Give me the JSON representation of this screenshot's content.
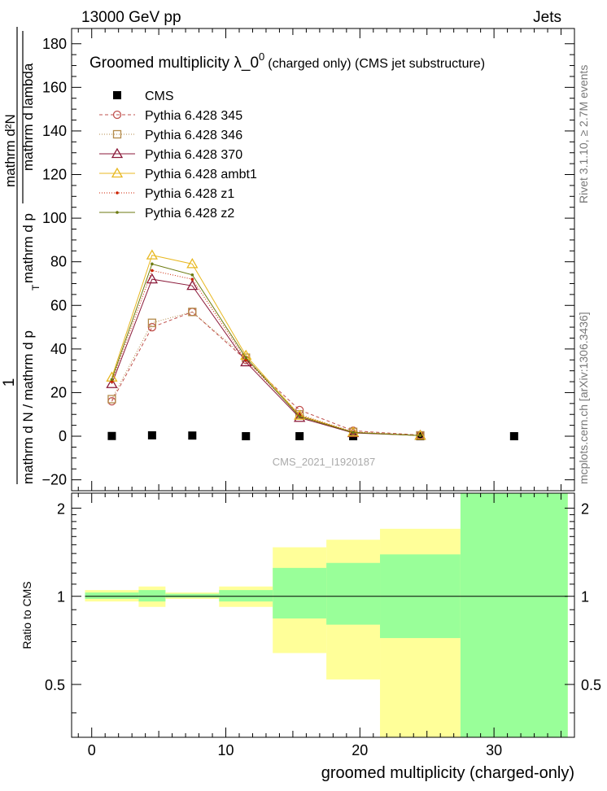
{
  "header": {
    "left": "13000 GeV pp",
    "right": "Jets"
  },
  "side_labels": {
    "rivet": "Rivet 3.1.10, ≥ 2.7M events",
    "mcplots": "mcplots.cern.ch [arXiv:1306.3436]"
  },
  "watermark": "CMS_2021_I1920187",
  "chart_data": [
    {
      "type": "line",
      "title_main": "Groomed multiplicity  λ_0",
      "title_sup": "0",
      "title_small": "(charged only) (CMS jet substructure)",
      "ylabel_top": "1",
      "ylabel_bottom": "mathrm d N / mathrm d p",
      "ylabel_sub": "T",
      "ylabel_tail": "mathrm d p",
      "ylabel_num": "mathrm d²N",
      "ylabel_den": "mathrm d lambda",
      "ylim": [
        -25,
        187
      ],
      "xlim": [
        -1.5,
        36
      ],
      "y_ticks": [
        -20,
        0,
        20,
        40,
        60,
        80,
        100,
        120,
        140,
        160,
        180
      ],
      "y_tick_labels": [
        "−20",
        "0",
        "20",
        "40",
        "60",
        "80",
        "100",
        "120",
        "140",
        "160",
        "180"
      ],
      "x": [
        1.5,
        4.5,
        7.5,
        11.5,
        15.5,
        19.5,
        24.5,
        31.5
      ],
      "series": [
        {
          "name": "CMS",
          "color": "#000000",
          "marker": "square",
          "dash": "none",
          "x": [
            1.5,
            4.5,
            7.5,
            11.5,
            15.5,
            19.5,
            24.5,
            31.5
          ],
          "values": [
            0.1,
            0.4,
            0.3,
            0.0,
            0.0,
            0.0,
            0.0,
            0.0
          ]
        },
        {
          "name": "Pythia 6.428 345",
          "color": "#c0504d",
          "marker": "circle",
          "dash": "4,3",
          "x": [
            1.5,
            4.5,
            7.5,
            11.5,
            15.5,
            19.5,
            24.5
          ],
          "values": [
            16,
            50,
            57,
            35,
            12,
            2.5,
            0.5
          ]
        },
        {
          "name": "Pythia 6.428 346",
          "color": "#b38a4a",
          "marker": "square-open",
          "dash": "1,2",
          "x": [
            1.5,
            4.5,
            7.5,
            11.5,
            15.5,
            19.5,
            24.5
          ],
          "values": [
            17,
            52,
            57,
            36,
            10,
            2.0,
            0.4
          ]
        },
        {
          "name": "Pythia 6.428 370",
          "color": "#8b1a3a",
          "marker": "triangle",
          "dash": "none",
          "x": [
            1.5,
            4.5,
            7.5,
            11.5,
            15.5,
            19.5,
            24.5
          ],
          "values": [
            24,
            72,
            69,
            34,
            8.5,
            1.5,
            0.3
          ]
        },
        {
          "name": "Pythia 6.428 ambt1",
          "color": "#e8b820",
          "marker": "triangle",
          "dash": "none",
          "x": [
            1.5,
            4.5,
            7.5,
            11.5,
            15.5,
            19.5,
            24.5
          ],
          "values": [
            27,
            83,
            79,
            37,
            9.5,
            1.8,
            0.3
          ]
        },
        {
          "name": "Pythia 6.428 z1",
          "color": "#cc2200",
          "marker": "dot",
          "dash": "1,2",
          "x": [
            1.5,
            4.5,
            7.5,
            11.5,
            15.5,
            19.5,
            24.5
          ],
          "values": [
            25,
            76,
            72,
            35,
            9.5,
            1.8,
            0.3
          ]
        },
        {
          "name": "Pythia 6.428 z2",
          "color": "#6b7a10",
          "marker": "dot",
          "dash": "none",
          "x": [
            1.5,
            4.5,
            7.5,
            11.5,
            15.5,
            19.5,
            24.5
          ],
          "values": [
            26,
            79,
            74,
            36,
            9.0,
            1.7,
            0.3
          ]
        }
      ]
    },
    {
      "type": "area",
      "ylabel": "Ratio to CMS",
      "xlabel": "groomed multiplicity (charged-only)",
      "ylim": [
        0.33,
        2.25
      ],
      "xlim": [
        -1.5,
        36
      ],
      "x_ticks": [
        0,
        10,
        20,
        30
      ],
      "y_ticks": [
        0.5,
        1,
        2
      ],
      "y_tick_labels": [
        "0.5",
        "1",
        "2"
      ],
      "reference": 1.0,
      "bands": [
        {
          "x0": -0.5,
          "x1": 3.5,
          "yellow": [
            0.96,
            1.05
          ],
          "green": [
            0.98,
            1.03
          ]
        },
        {
          "x0": 3.5,
          "x1": 5.5,
          "yellow": [
            0.92,
            1.08
          ],
          "green": [
            0.96,
            1.05
          ]
        },
        {
          "x0": 5.5,
          "x1": 9.5,
          "yellow": [
            0.98,
            1.03
          ],
          "green": [
            0.99,
            1.02
          ]
        },
        {
          "x0": 9.5,
          "x1": 13.5,
          "yellow": [
            0.92,
            1.08
          ],
          "green": [
            0.96,
            1.05
          ]
        },
        {
          "x0": 13.5,
          "x1": 17.5,
          "yellow": [
            0.64,
            1.47
          ],
          "green": [
            0.84,
            1.25
          ]
        },
        {
          "x0": 17.5,
          "x1": 21.5,
          "yellow": [
            0.52,
            1.56
          ],
          "green": [
            0.8,
            1.3
          ]
        },
        {
          "x0": 21.5,
          "x1": 27.5,
          "yellow": [
            0.33,
            1.7
          ],
          "green": [
            0.72,
            1.39
          ]
        },
        {
          "x0": 27.5,
          "x1": 35.5,
          "yellow": [
            0.33,
            2.25
          ],
          "green": [
            0.33,
            2.25
          ]
        }
      ]
    }
  ]
}
